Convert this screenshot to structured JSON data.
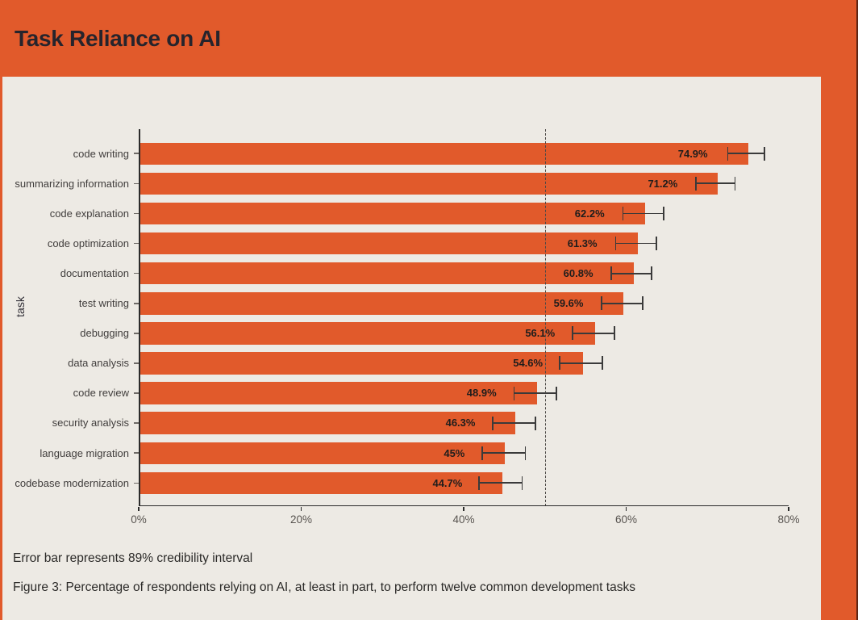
{
  "header": {
    "title": "Task Reliance on AI"
  },
  "footer": {
    "note": "Error bar represents 89% credibility interval",
    "caption": "Figure 3: Percentage of respondents relying on AI, at least in part, to perform twelve common development tasks"
  },
  "colors": {
    "accent_orange": "#E15A2B",
    "panel_cream": "#EDEAE4",
    "edge_dark": "#5F2513",
    "title_text": "#26242C",
    "axis_dark": "#2B2B2B",
    "error_bar": "#3A3A3A"
  },
  "chart_data": {
    "type": "bar",
    "orientation": "horizontal",
    "title": "Task Reliance on AI",
    "ylabel": "task",
    "xlabel": "",
    "xlim": [
      0,
      80
    ],
    "x_tick_step": 20,
    "x_tick_labels": [
      "0%",
      "20%",
      "40%",
      "60%",
      "80%"
    ],
    "grid": false,
    "reference_line_x": 50,
    "error_bar_meaning": "89% credibility interval",
    "categories": [
      "code writing",
      "summarizing information",
      "code explanation",
      "code optimization",
      "documentation",
      "test writing",
      "debugging",
      "data analysis",
      "code review",
      "security analysis",
      "language migration",
      "codebase modernization"
    ],
    "values": [
      74.9,
      71.2,
      62.2,
      61.3,
      60.8,
      59.6,
      56.1,
      54.6,
      48.9,
      46.3,
      45,
      44.7
    ],
    "value_labels": [
      "74.9%",
      "71.2%",
      "62.2%",
      "61.3%",
      "60.8%",
      "59.6%",
      "56.1%",
      "54.6%",
      "48.9%",
      "46.3%",
      "45%",
      "44.7%"
    ],
    "ci_low": [
      72.5,
      68.6,
      59.6,
      58.7,
      58.2,
      57.0,
      53.4,
      51.8,
      46.2,
      43.6,
      42.3,
      41.9
    ],
    "ci_high": [
      77.0,
      73.4,
      64.6,
      63.7,
      63.1,
      62.0,
      58.6,
      57.1,
      51.4,
      48.8,
      47.6,
      47.2
    ]
  }
}
